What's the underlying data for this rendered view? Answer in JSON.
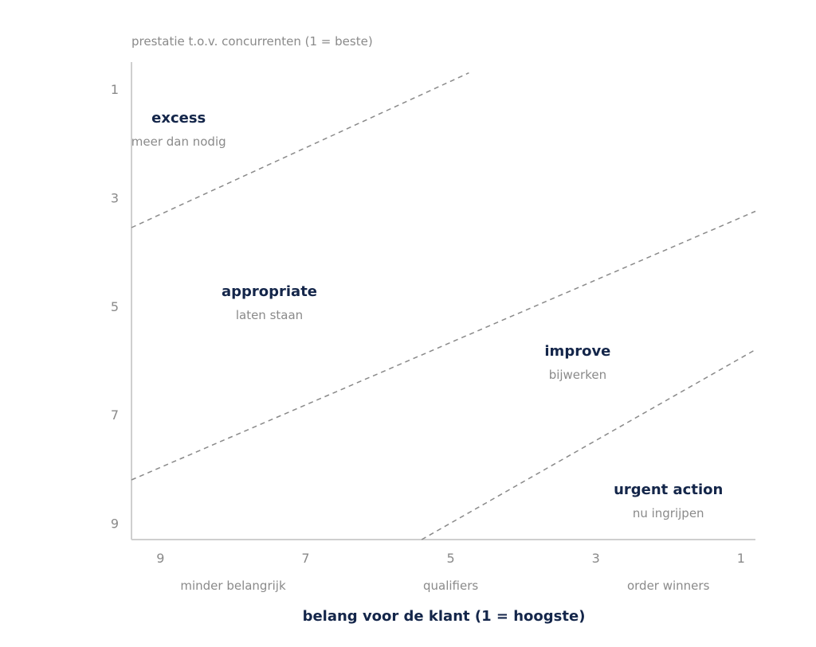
{
  "chart_data": {
    "type": "scatter",
    "ylabel": "prestatie t.o.v. concurrenten (1 = beste)",
    "xlabel": "belang voor de klant (1 = hoogste)",
    "x_ticks": [
      "9",
      "7",
      "5",
      "3",
      "1"
    ],
    "y_ticks": [
      "1",
      "3",
      "5",
      "7",
      "9"
    ],
    "xlim": [
      9.4,
      0.8
    ],
    "ylim": [
      0.5,
      9.3
    ],
    "x_category_labels": [
      {
        "label": "minder belangrijk",
        "x": 8.0
      },
      {
        "label": "qualifiers",
        "x": 5.0
      },
      {
        "label": "order winners",
        "x": 2.0
      }
    ],
    "boundaries": [
      {
        "name": "excess-boundary",
        "x": [
          9.4,
          4.75
        ],
        "y": [
          3.55,
          0.7
        ]
      },
      {
        "name": "appropriate-boundary",
        "x": [
          9.4,
          0.8
        ],
        "y": [
          8.2,
          3.25
        ]
      },
      {
        "name": "urgent-boundary",
        "x": [
          5.4,
          0.8
        ],
        "y": [
          9.3,
          5.8
        ]
      }
    ],
    "zones": [
      {
        "title": "excess",
        "subtitle": "meer dan nodig",
        "x": 8.75,
        "y": 1.7
      },
      {
        "title": "appropriate",
        "subtitle": "laten staan",
        "x": 7.5,
        "y": 4.9
      },
      {
        "title": "improve",
        "subtitle": "bijwerken",
        "x": 3.25,
        "y": 6.0
      },
      {
        "title": "urgent action",
        "subtitle": "nu ingrijpen",
        "x": 2.0,
        "y": 8.55
      }
    ],
    "grid": false,
    "legend": "none"
  },
  "colors": {
    "title": "#14264a",
    "muted": "#8a8a8a",
    "axis": "#cfcfcf",
    "boundary": "#8a8a8a"
  }
}
